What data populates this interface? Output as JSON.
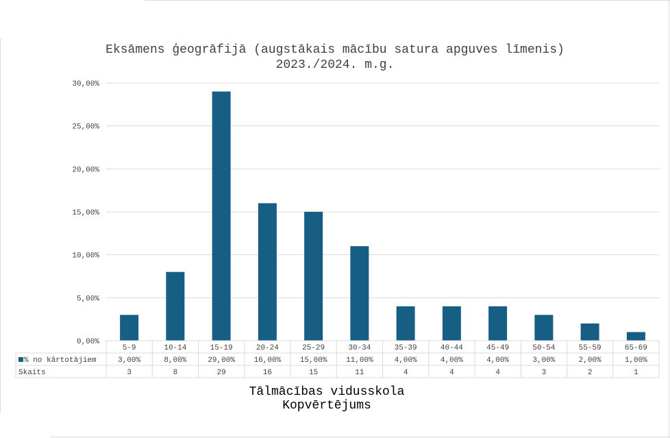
{
  "chart_data": {
    "type": "bar",
    "title_line1": "Eksāmens ģeogrāfijā (augstākais mācību satura apguves līmenis)",
    "title_line2": "2023./2024. m.g.",
    "xlabel_line1": "Tālmācības vidusskola",
    "xlabel_line2": "Kopvērtējums",
    "categories": [
      "5-9",
      "10-14",
      "15-19",
      "20-24",
      "25-29",
      "30-34",
      "35-39",
      "40-44",
      "45-49",
      "50-54",
      "55-59",
      "65-69"
    ],
    "series": [
      {
        "name": "% no kārtotājiem",
        "values": [
          3,
          8,
          29,
          16,
          15,
          11,
          4,
          4,
          4,
          3,
          2,
          1
        ],
        "labels": [
          "3,00%",
          "8,00%",
          "29,00%",
          "16,00%",
          "15,00%",
          "11,00%",
          "4,00%",
          "4,00%",
          "4,00%",
          "3,00%",
          "2,00%",
          "1,00%"
        ]
      }
    ],
    "table_rows": [
      {
        "label": "Skaits",
        "values": [
          "3",
          "8",
          "29",
          "16",
          "15",
          "11",
          "4",
          "4",
          "4",
          "3",
          "2",
          "1"
        ]
      }
    ],
    "y_ticks": [
      "0,00%",
      "5,00%",
      "10,00%",
      "15,00%",
      "20,00%",
      "25,00%",
      "30,00%"
    ],
    "ylim": [
      0,
      30
    ],
    "grid": true,
    "legend": "data-table",
    "colors": {
      "bar": "#165e83",
      "grid": "#d9d9d9",
      "text": "#404040"
    }
  }
}
